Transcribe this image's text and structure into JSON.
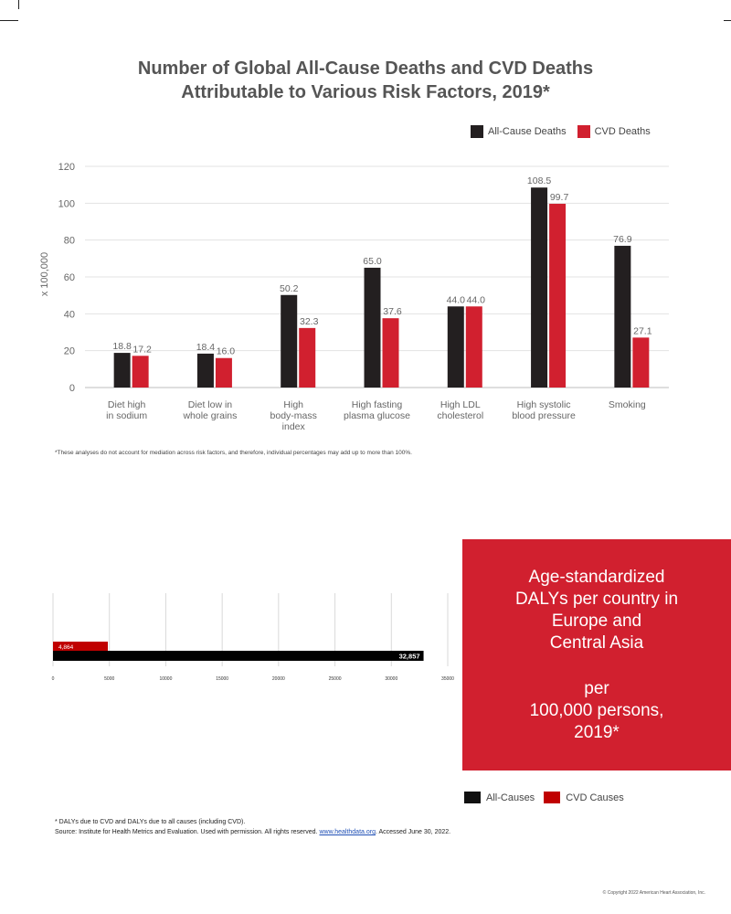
{
  "title_line1": "Number of Global All-Cause Deaths and CVD Deaths",
  "title_line2": "Attributable to Various Risk Factors, 2019*",
  "chart_data": [
    {
      "type": "bar",
      "title": "Number of Global All-Cause Deaths and CVD Deaths Attributable to Various Risk Factors, 2019*",
      "ylabel": "x 100,000",
      "xlabel": "",
      "ylim": [
        0,
        120
      ],
      "yticks": [
        0,
        20,
        40,
        60,
        80,
        100,
        120
      ],
      "grid": true,
      "legend_position": "top-right",
      "categories": [
        [
          "Diet high",
          "in sodium"
        ],
        [
          "Diet low in",
          "whole grains"
        ],
        [
          "High",
          "body-mass",
          "index"
        ],
        [
          "High fasting",
          "plasma glucose"
        ],
        [
          "High LDL",
          "cholesterol"
        ],
        [
          "High systolic",
          "blood pressure"
        ],
        [
          "Smoking"
        ]
      ],
      "series": [
        {
          "name": "All-Cause Deaths",
          "color": "#231f20",
          "values": [
            18.8,
            18.4,
            50.2,
            65.0,
            44.0,
            108.5,
            76.9
          ],
          "labels": [
            "18.8",
            "18.4",
            "50.2",
            "65.0",
            "44.0",
            "108.5",
            "76.9"
          ]
        },
        {
          "name": "CVD Deaths",
          "color": "#d1202f",
          "values": [
            17.2,
            16.0,
            32.3,
            37.6,
            44.0,
            99.7,
            27.1
          ],
          "labels": [
            "17.2",
            "16.0",
            "32.3",
            "37.6",
            "44.0",
            "99.7",
            "27.1"
          ]
        }
      ]
    },
    {
      "type": "bar",
      "orientation": "horizontal",
      "xlim": [
        0,
        35000
      ],
      "xticks": [
        "0",
        "5000",
        "10000",
        "15000",
        "20000",
        "25000",
        "30000",
        "35000"
      ],
      "grid": true,
      "legend_position": "bottom-right",
      "series": [
        {
          "name": "CVD Causes",
          "color": "#c00000",
          "value": 4864,
          "label": "4,864"
        },
        {
          "name": "All-Causes",
          "color": "#000000",
          "value": 32857,
          "label": "32,857"
        }
      ]
    }
  ],
  "footnote": "*These analyses do not account for mediation across risk factors, and therefore, individual percentages may add up to more than 100%.",
  "red_box": {
    "text1": "Age-standardized\nDALYs per country in\nEurope and\nCentral Asia",
    "text2": "per\n100,000 persons,\n2019*"
  },
  "notes": {
    "line1": "* DALYs due to CVD and DALYs due to all causes (including CVD).",
    "line2_prefix": "Source: Institute for Health Metrics and Evaluation. Used with permission. All rights reserved.",
    "link": "www.healthdata.org",
    "line2_suffix": ". Accessed June 30, 2022."
  },
  "copyright": "© Copyright 2022 American Heart Association, Inc."
}
